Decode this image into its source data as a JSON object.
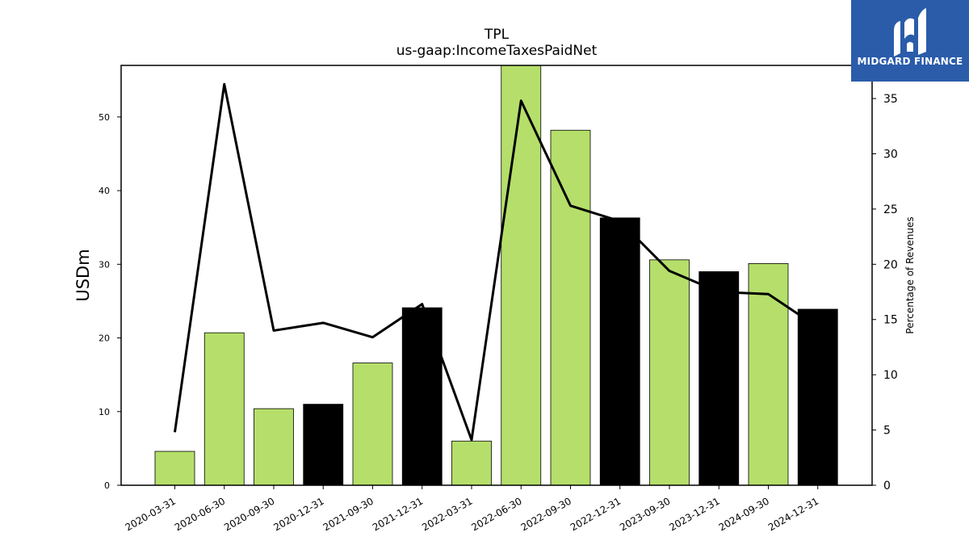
{
  "chart_data": {
    "type": "bar",
    "title": "TPL",
    "subtitle": "us-gaap:IncomeTaxesPaidNet",
    "ylabel": "USDm",
    "y2label": "Percentage of Revenues",
    "ylim": [
      0,
      57
    ],
    "y2lim": [
      0,
      38
    ],
    "yticks": [
      0,
      10,
      20,
      30,
      40,
      50
    ],
    "y2ticks": [
      0,
      5,
      10,
      15,
      20,
      25,
      30,
      35
    ],
    "categories": [
      "2020-03-31",
      "2020-06-30",
      "2020-09-30",
      "2020-12-31",
      "2021-09-30",
      "2021-12-31",
      "2022-03-31",
      "2022-06-30",
      "2022-09-30",
      "2022-12-31",
      "2023-09-30",
      "2023-12-31",
      "2024-09-30",
      "2024-12-31"
    ],
    "series": [
      {
        "type": "bar",
        "axis": "left",
        "values": [
          4.6,
          20.7,
          10.4,
          11.0,
          16.6,
          24.1,
          6.0,
          57.0,
          48.2,
          36.3,
          30.6,
          29.0,
          30.1,
          23.9
        ],
        "colors": [
          "#b5df6a",
          "#b5df6a",
          "#b5df6a",
          "#000000",
          "#b5df6a",
          "#000000",
          "#b5df6a",
          "#b5df6a",
          "#b5df6a",
          "#000000",
          "#b5df6a",
          "#000000",
          "#b5df6a",
          "#000000"
        ]
      },
      {
        "type": "line",
        "axis": "right",
        "color": "#000000",
        "values": [
          4.8,
          36.3,
          14.0,
          14.7,
          13.4,
          16.4,
          4.1,
          34.8,
          25.3,
          23.9,
          19.4,
          17.5,
          17.3,
          14.3
        ]
      }
    ],
    "grid": false
  },
  "branding": {
    "logo_text": "MIDGARD FINANCE",
    "logo_color": "#2a5caa"
  }
}
